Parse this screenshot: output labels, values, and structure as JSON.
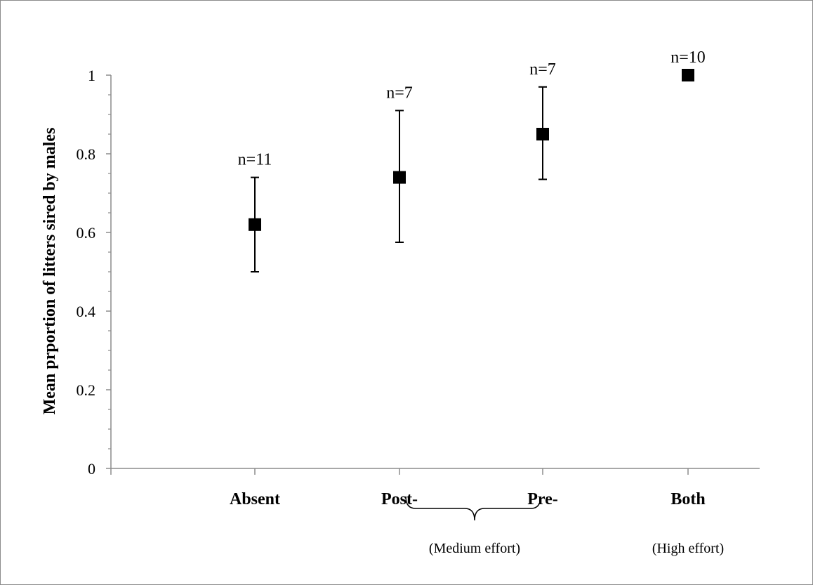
{
  "chart_data": {
    "type": "scatter",
    "title": "",
    "xlabel": "",
    "ylabel": "Mean prportion of litters sired by males",
    "ylim": [
      0,
      1
    ],
    "yticks": [
      "0",
      "0.2",
      "0.4",
      "0.6",
      "0.8",
      "1"
    ],
    "grid": false,
    "legend": "none",
    "marker_color": "#000000",
    "categories": [
      "Absent",
      "Post-",
      "Pre-",
      "Both"
    ],
    "values": [
      0.62,
      0.74,
      0.85,
      1.0
    ],
    "error_low": [
      0.5,
      0.575,
      0.735,
      1.0
    ],
    "error_high": [
      0.74,
      0.91,
      0.97,
      1.0
    ],
    "n_labels": [
      "n=11",
      "n=7",
      "n=7",
      "n=10"
    ],
    "group_labels": {
      "medium": "(Medium effort)",
      "high": "(High effort)"
    }
  }
}
